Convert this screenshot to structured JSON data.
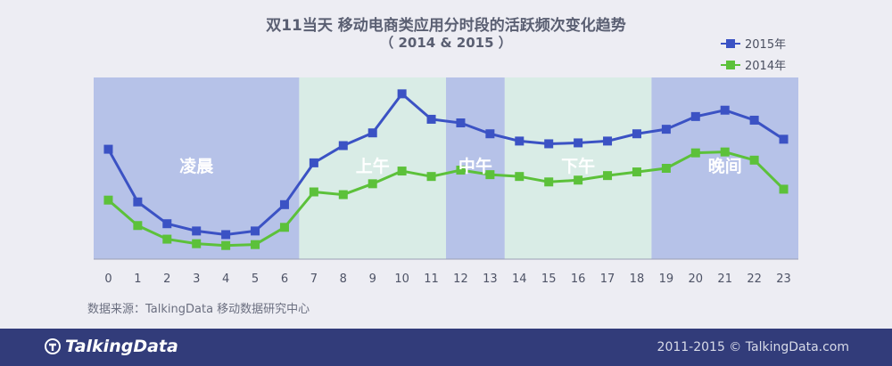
{
  "title_line1": "双11当天 移动电商类应用分时段的活跃频次变化趋势",
  "title_line2": "（ 2014 & 2015 ）",
  "source": "数据来源：TalkingData 移动数据研究中心",
  "footer": {
    "logo_text": "TalkingData",
    "copyright": "2011-2015 © TalkingData.com"
  },
  "colors": {
    "series_2015": "#3b52c4",
    "series_2014": "#5cc13a",
    "band_blue": "#b6c2e8",
    "band_green": "#d9ece6",
    "footer_bg": "#323c7a"
  },
  "chart_data": {
    "type": "line",
    "title": "双11当天 移动电商类应用分时段的活跃频次变化趋势",
    "subtitle": "（ 2014 & 2015 ）",
    "x": [
      0,
      1,
      2,
      3,
      4,
      5,
      6,
      7,
      8,
      9,
      10,
      11,
      12,
      13,
      14,
      15,
      16,
      17,
      18,
      19,
      20,
      21,
      22,
      23
    ],
    "x_tick_labels": [
      "0",
      "1",
      "2",
      "3",
      "4",
      "5",
      "6",
      "7",
      "8",
      "9",
      "10",
      "11",
      "12",
      "13",
      "14",
      "15",
      "16",
      "17",
      "18",
      "19",
      "20",
      "21",
      "22",
      "23"
    ],
    "series": [
      {
        "name": "2015年",
        "values": [
          60.5,
          31.5,
          19.5,
          15.5,
          13.5,
          15.5,
          30.0,
          53.0,
          62.5,
          69.5,
          91.0,
          77.0,
          75.0,
          69.0,
          65.0,
          63.5,
          64.0,
          65.0,
          69.0,
          71.5,
          78.5,
          82.0,
          76.5,
          66.0
        ]
      },
      {
        "name": "2014年",
        "values": [
          32.5,
          18.5,
          11.0,
          8.5,
          7.5,
          8.0,
          17.5,
          37.0,
          35.5,
          41.5,
          48.5,
          45.5,
          49.0,
          46.5,
          45.5,
          42.5,
          43.5,
          46.0,
          48.0,
          50.0,
          58.5,
          59.0,
          54.5,
          38.5
        ]
      }
    ],
    "ylim": [
      0,
      100
    ],
    "y_axis_labels_shown": false,
    "grid": false,
    "legend": "top-right",
    "bands": [
      {
        "label": "凌晨",
        "from": -0.5,
        "to": 6.5,
        "color": "band_blue"
      },
      {
        "label": "上午",
        "from": 6.5,
        "to": 11.5,
        "color": "band_green"
      },
      {
        "label": "中午",
        "from": 11.5,
        "to": 13.5,
        "color": "band_blue"
      },
      {
        "label": "下午",
        "from": 13.5,
        "to": 18.5,
        "color": "band_green"
      },
      {
        "label": "晚间",
        "from": 18.5,
        "to": 23.5,
        "color": "band_blue"
      }
    ]
  }
}
